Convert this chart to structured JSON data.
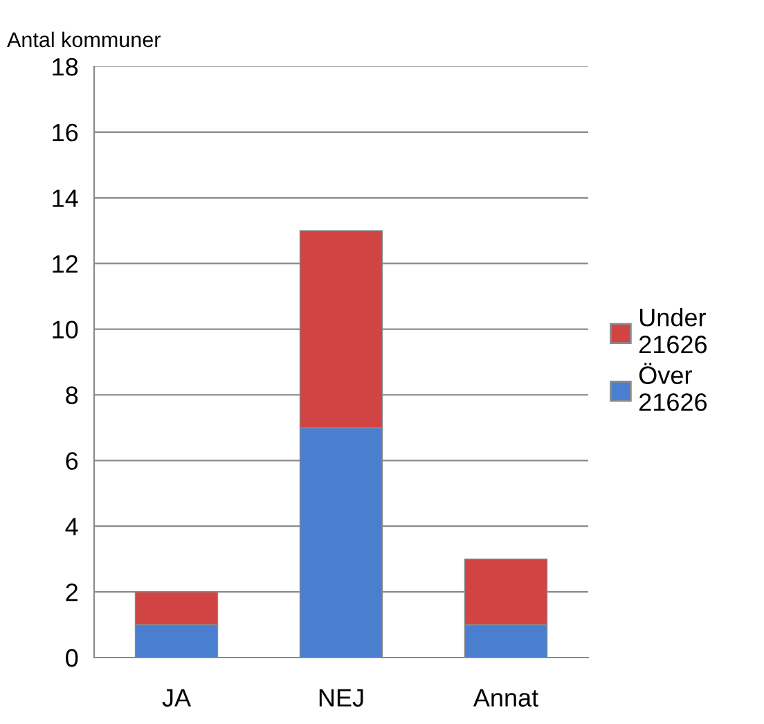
{
  "chart_data": {
    "type": "bar",
    "stacked": true,
    "ylabel": "Antal kommuner",
    "categories": [
      "JA",
      "NEJ",
      "Annat"
    ],
    "series": [
      {
        "name": "Över 21626",
        "color": "#4a7fd0",
        "values": [
          1,
          7,
          1
        ]
      },
      {
        "name": "Under 21626",
        "color": "#d04444",
        "values": [
          1,
          6,
          2
        ]
      }
    ],
    "ylim": [
      0,
      18
    ],
    "yticks": [
      0,
      2,
      4,
      6,
      8,
      10,
      12,
      14,
      16,
      18
    ],
    "grid": "y",
    "legend": "right"
  }
}
